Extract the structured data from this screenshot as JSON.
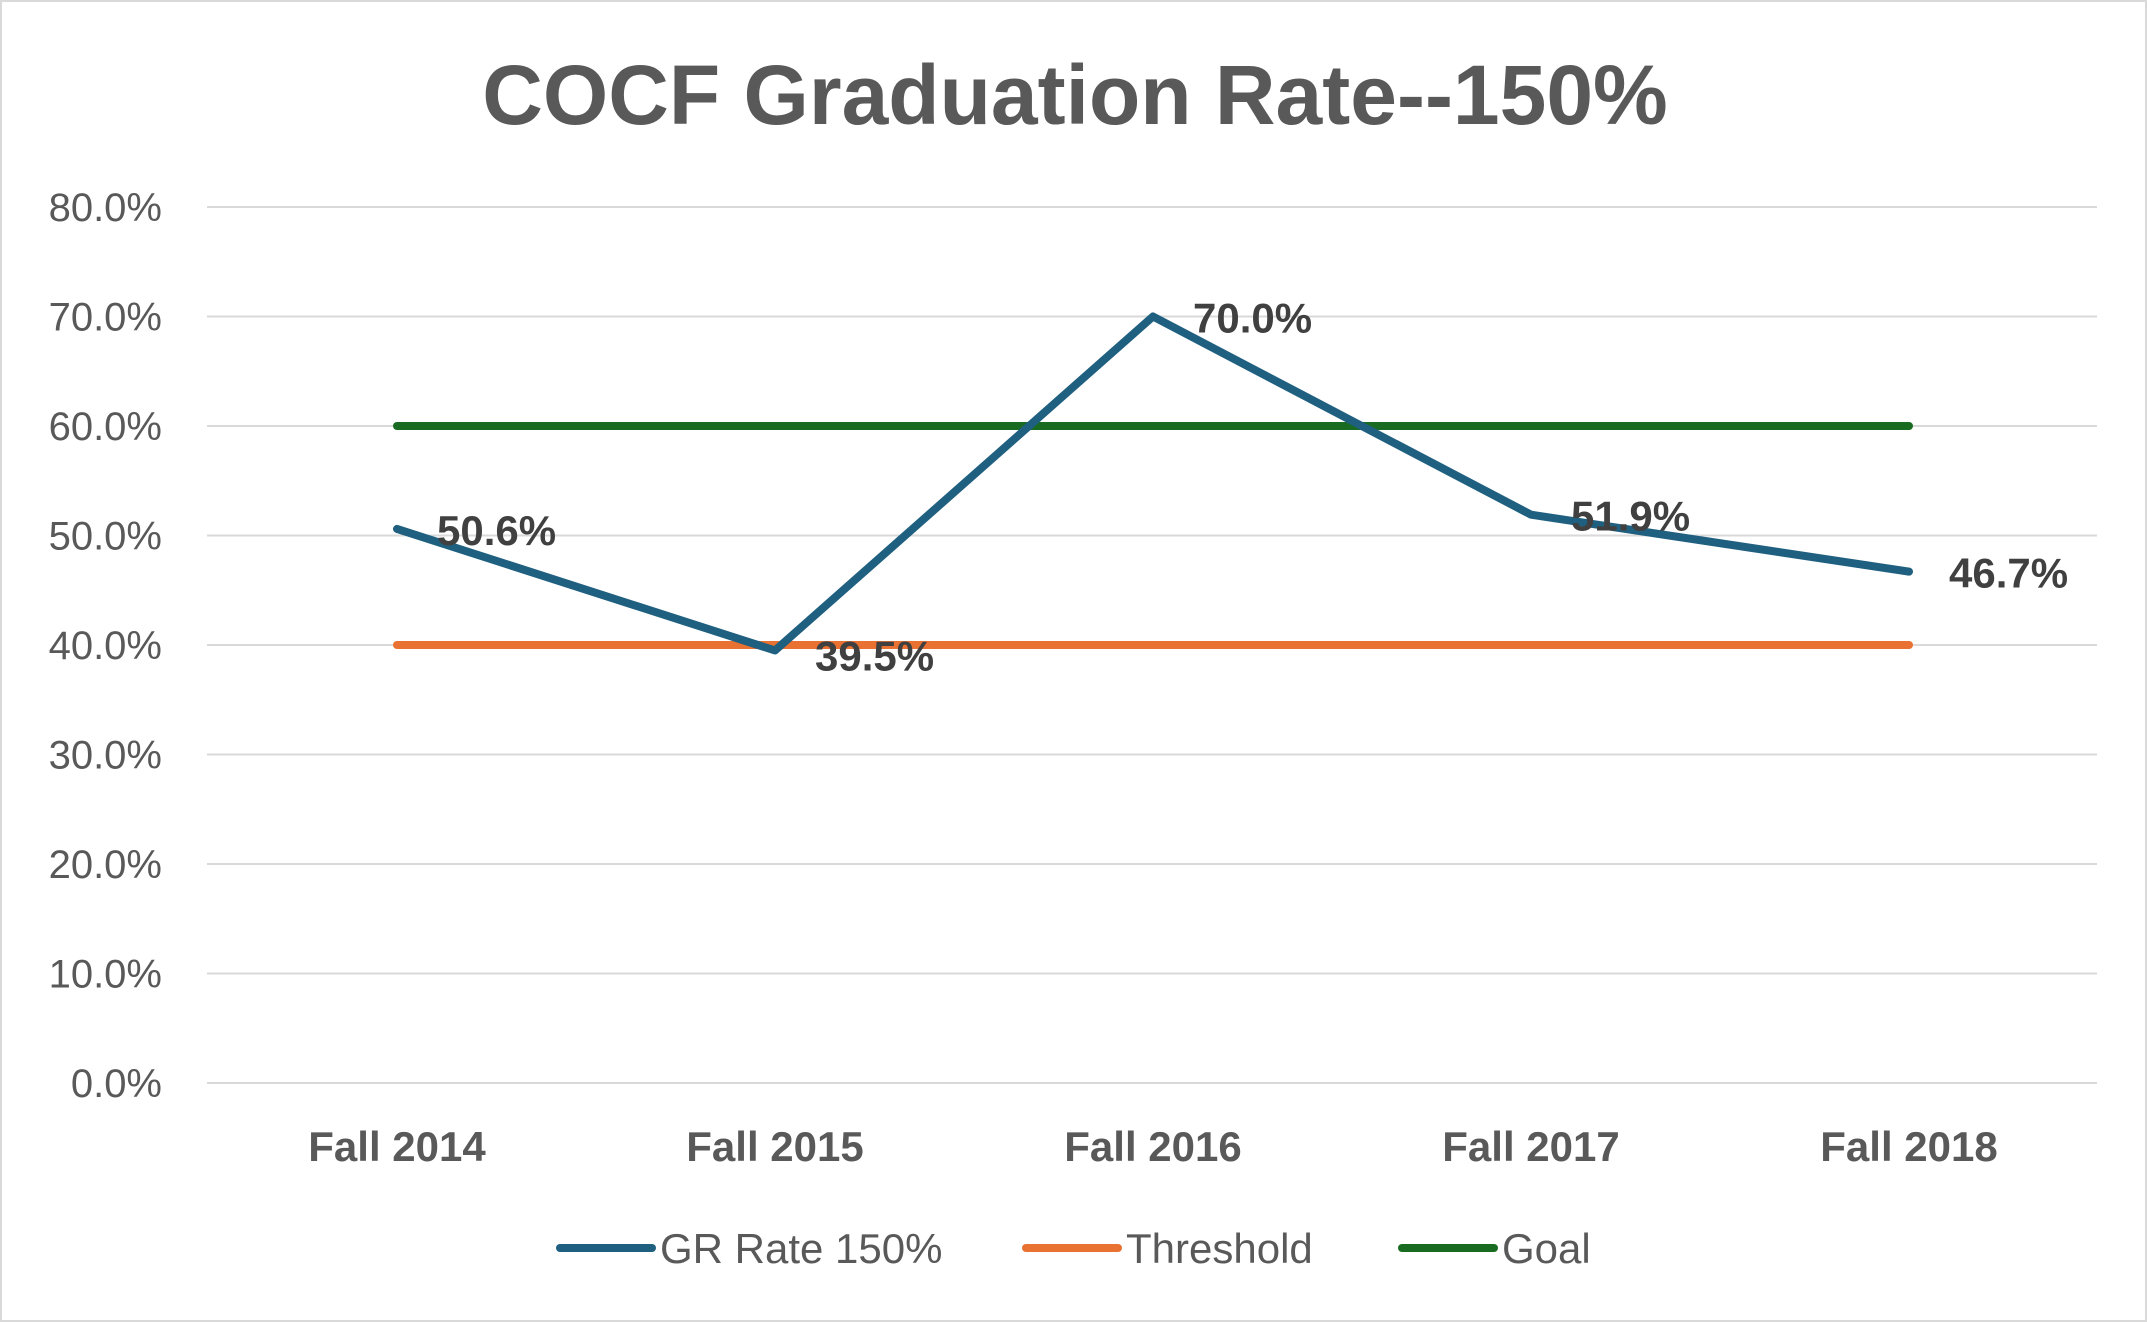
{
  "chart_data": {
    "type": "line",
    "title": "COCF Graduation Rate--150%",
    "categories": [
      "Fall 2014",
      "Fall 2015",
      "Fall 2016",
      "Fall 2017",
      "Fall 2018"
    ],
    "ylim": [
      0,
      80
    ],
    "y_ticks": [
      "0.0%",
      "10.0%",
      "20.0%",
      "30.0%",
      "40.0%",
      "50.0%",
      "60.0%",
      "70.0%",
      "80.0%"
    ],
    "y_tick_values": [
      0,
      10,
      20,
      30,
      40,
      50,
      60,
      70,
      80
    ],
    "grid": true,
    "legend_position": "bottom",
    "series": [
      {
        "name": "GR Rate 150%",
        "values": [
          50.6,
          39.5,
          70.0,
          51.9,
          46.7
        ],
        "data_labels": [
          "50.6%",
          "39.5%",
          "70.0%",
          "51.9%",
          "46.7%"
        ],
        "color": "#1f5f7f"
      },
      {
        "name": "Threshold",
        "values": [
          40,
          40,
          40,
          40,
          40
        ],
        "color": "#e97132"
      },
      {
        "name": "Goal",
        "values": [
          60,
          60,
          60,
          60,
          60
        ],
        "color": "#1a6b22"
      }
    ]
  }
}
